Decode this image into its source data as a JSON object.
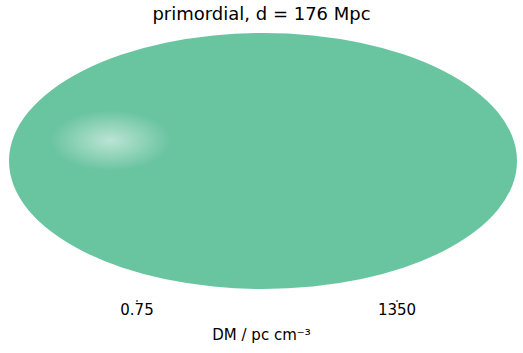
{
  "chart_data": {
    "type": "heatmap",
    "title": "primordial, d = 176 Mpc",
    "colorbar": {
      "label": "DM / pc cm⁻³",
      "range": [
        0.75,
        1350
      ],
      "ticks": [
        0.75,
        1350
      ],
      "colors": [
        "#5cbf98",
        "#ffffff"
      ],
      "log": true
    }
  }
}
